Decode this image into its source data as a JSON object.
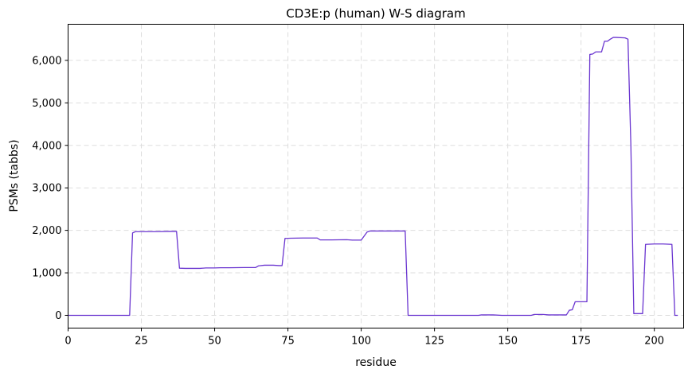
{
  "chart_data": {
    "type": "line",
    "title": "CD3E:p (human) W-S diagram",
    "xlabel": "residue",
    "ylabel": "PSMs (tabbs)",
    "xlim": [
      0,
      210
    ],
    "ylim": [
      -300,
      6850
    ],
    "xticks": [
      0,
      25,
      50,
      75,
      100,
      125,
      150,
      175,
      200
    ],
    "xtick_labels": [
      "0",
      "25",
      "50",
      "75",
      "100",
      "125",
      "150",
      "175",
      "200"
    ],
    "yticks": [
      0,
      1000,
      2000,
      3000,
      4000,
      5000,
      6000
    ],
    "ytick_labels": [
      "0",
      "1,000",
      "2,000",
      "3,000",
      "4,000",
      "5,000",
      "6,000"
    ],
    "grid": true,
    "line_color": "#6a35d0",
    "series": [
      {
        "x": [
          0,
          21,
          22,
          23,
          25,
          30,
          35,
          37,
          38,
          40,
          45,
          47,
          50,
          52,
          55,
          60,
          64,
          65,
          67,
          70,
          72,
          73,
          74,
          76,
          80,
          82,
          85,
          86,
          90,
          95,
          97,
          100,
          102,
          103,
          105,
          110,
          115,
          116,
          120,
          125,
          130,
          135,
          140,
          141,
          145,
          148,
          150,
          155,
          158,
          159,
          162,
          164,
          165,
          170,
          171,
          172,
          173,
          174,
          175,
          177,
          178,
          179,
          180,
          182,
          183,
          184,
          185,
          186,
          187,
          190,
          191,
          192,
          193,
          194,
          195,
          196,
          197,
          200,
          203,
          206,
          207,
          208
        ],
        "y": [
          0,
          0,
          1940,
          1970,
          1970,
          1970,
          1975,
          1975,
          1110,
          1105,
          1105,
          1115,
          1115,
          1120,
          1120,
          1125,
          1125,
          1165,
          1180,
          1180,
          1170,
          1170,
          1810,
          1815,
          1820,
          1820,
          1820,
          1775,
          1775,
          1780,
          1770,
          1770,
          1960,
          1985,
          1985,
          1985,
          1985,
          0,
          0,
          0,
          0,
          0,
          0,
          10,
          10,
          0,
          0,
          0,
          0,
          20,
          20,
          10,
          10,
          10,
          120,
          130,
          320,
          320,
          320,
          320,
          6140,
          6150,
          6200,
          6200,
          6450,
          6450,
          6500,
          6540,
          6540,
          6530,
          6500,
          4000,
          40,
          40,
          40,
          40,
          1670,
          1680,
          1680,
          1670,
          0,
          0
        ]
      }
    ]
  }
}
